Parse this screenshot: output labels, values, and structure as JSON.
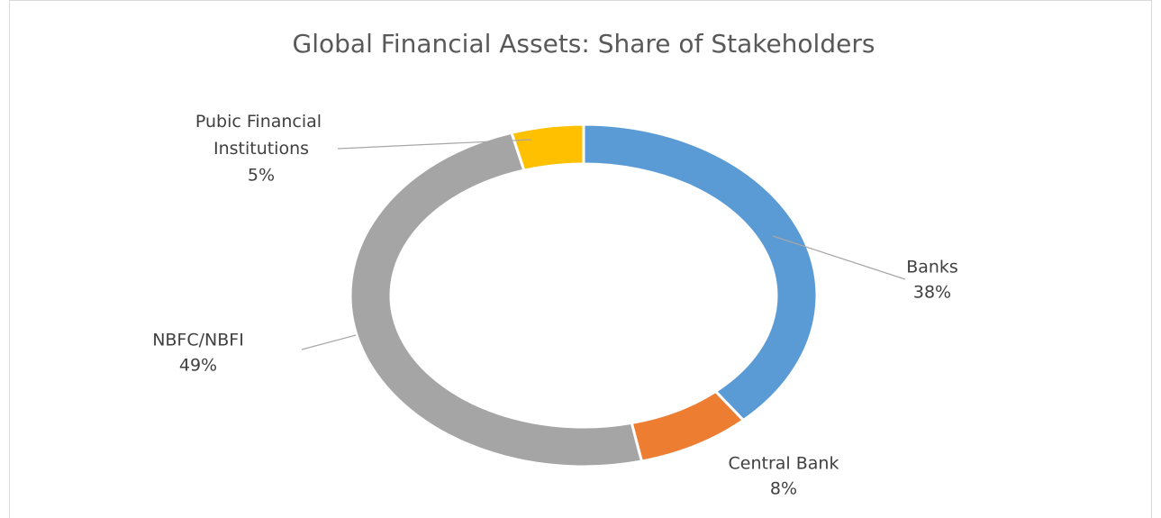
{
  "chart_data": {
    "type": "pie",
    "donut": true,
    "title": "Global Financial Assets: Share of Stakeholders",
    "categories": [
      "Banks",
      "Central Bank",
      "NBFC/NBFI",
      "Pubic Financial Institutions"
    ],
    "values": [
      38,
      8,
      49,
      5
    ],
    "value_labels": [
      "38%",
      "8%",
      "49%",
      "5%"
    ],
    "colors": [
      "#5b9bd5",
      "#ed7d31",
      "#a5a5a5",
      "#ffc000"
    ]
  }
}
